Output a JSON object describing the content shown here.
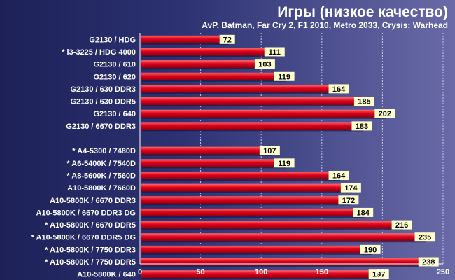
{
  "chart_data": {
    "type": "bar",
    "orientation": "horizontal",
    "title": "Игры (низкое качество)",
    "subtitle": "AvP, Batman, Far Cry 2, F1 2010, Metro 2033, Crysis: Warhead",
    "xlabel": "",
    "ylabel": "",
    "xlim": [
      0,
      250
    ],
    "ticks": [
      0,
      50,
      100,
      150,
      200,
      250
    ],
    "grid": true,
    "legend": "none",
    "colors": {
      "bar": "#e0001a",
      "bar_light": "#ff5a5a",
      "bar_dark": "#8a0010",
      "label_box": "#ffffcc"
    },
    "categories": [
      "G2130 / HDG",
      "* i3-3225 / HDG 4000",
      "G2130 / 610",
      "G2130 / 620",
      "G2130 / 630 DDR3",
      "G2130 / 630 DDR5",
      "G2130 / 640",
      "G2130 / 6670 DDR3",
      "",
      "* A4-5300 / 7480D",
      "* A6-5400K / 7540D",
      "* A8-5600K / 7560D",
      "A10-5800K / 7660D",
      "A10-5800K / 6670 DDR3",
      "A10-5800K / 6670 DDR3 DG",
      "* A10-5800K / 6670 DDR5",
      "* A10-5800K / 6670 DDR5 DG",
      "* A10-5800K / 7750 DDR3",
      "* A10-5800K / 7750 DDR5",
      "A10-5800K / 640"
    ],
    "values": [
      72,
      111,
      103,
      119,
      164,
      185,
      202,
      183,
      null,
      107,
      119,
      164,
      174,
      172,
      184,
      216,
      235,
      190,
      238,
      197
    ]
  }
}
